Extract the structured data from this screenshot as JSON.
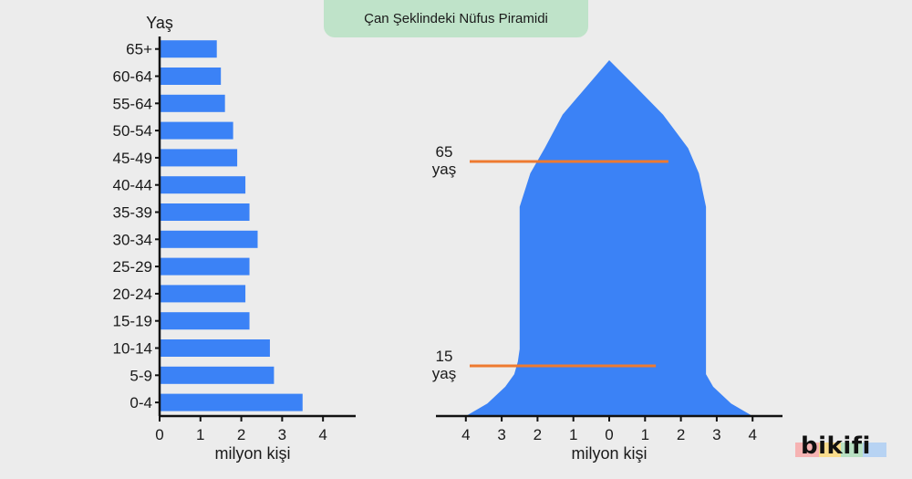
{
  "title": "Çan Şeklindeki Nüfus Piramidi",
  "logo": {
    "text": "bikifi"
  },
  "colors": {
    "bar": "#3b82f6",
    "marker": "#ee7a30",
    "axis": "#111111",
    "title_bg": "#bfe3c9",
    "background": "#ececec",
    "logo_stripes": [
      "#f6b3b3",
      "#f9dc8c",
      "#b8e0c2",
      "#b7d3f3"
    ]
  },
  "chart_data": [
    {
      "type": "bar",
      "orientation": "horizontal",
      "ylabel": "Yaş",
      "xlabel": "milyon kişi",
      "categories": [
        "0-4",
        "5-9",
        "10-14",
        "15-19",
        "20-24",
        "25-29",
        "30-34",
        "35-39",
        "40-44",
        "45-49",
        "50-54",
        "55-64",
        "60-64",
        "65+"
      ],
      "values": [
        3.5,
        2.8,
        2.7,
        2.2,
        2.1,
        2.2,
        2.4,
        2.2,
        2.1,
        1.9,
        1.8,
        1.6,
        1.5,
        1.4
      ],
      "x_ticks": [
        "0",
        "1",
        "2",
        "3",
        "4"
      ],
      "xlim": [
        0,
        4.8
      ]
    },
    {
      "type": "area",
      "shape": "bell-shaped population pyramid",
      "xlabel": "milyon kişi",
      "x_ticks": [
        "4",
        "3",
        "2",
        "1",
        "0",
        "1",
        "2",
        "3",
        "4"
      ],
      "x_tick_values": [
        -4,
        -3,
        -2,
        -1,
        0,
        1,
        2,
        3,
        4
      ],
      "xlim": [
        -4.4,
        4.8
      ],
      "half_width_profile": {
        "age": [
          0,
          3,
          7,
          10,
          13,
          16,
          50,
          58,
          64,
          72,
          79,
          85
        ],
        "left": [
          4.0,
          3.4,
          2.9,
          2.65,
          2.55,
          2.5,
          2.5,
          2.2,
          1.8,
          1.3,
          0.6,
          0.0
        ],
        "right": [
          4.0,
          3.4,
          2.9,
          2.7,
          2.7,
          2.7,
          2.7,
          2.5,
          2.2,
          1.5,
          0.7,
          0.0
        ]
      },
      "markers": [
        {
          "label_top": "65",
          "label_bottom": "yaş",
          "x_from": -3.8,
          "x_to": 1.65
        },
        {
          "label_top": "15",
          "label_bottom": "yaş",
          "x_from": -3.8,
          "x_to": 1.3
        }
      ]
    }
  ]
}
